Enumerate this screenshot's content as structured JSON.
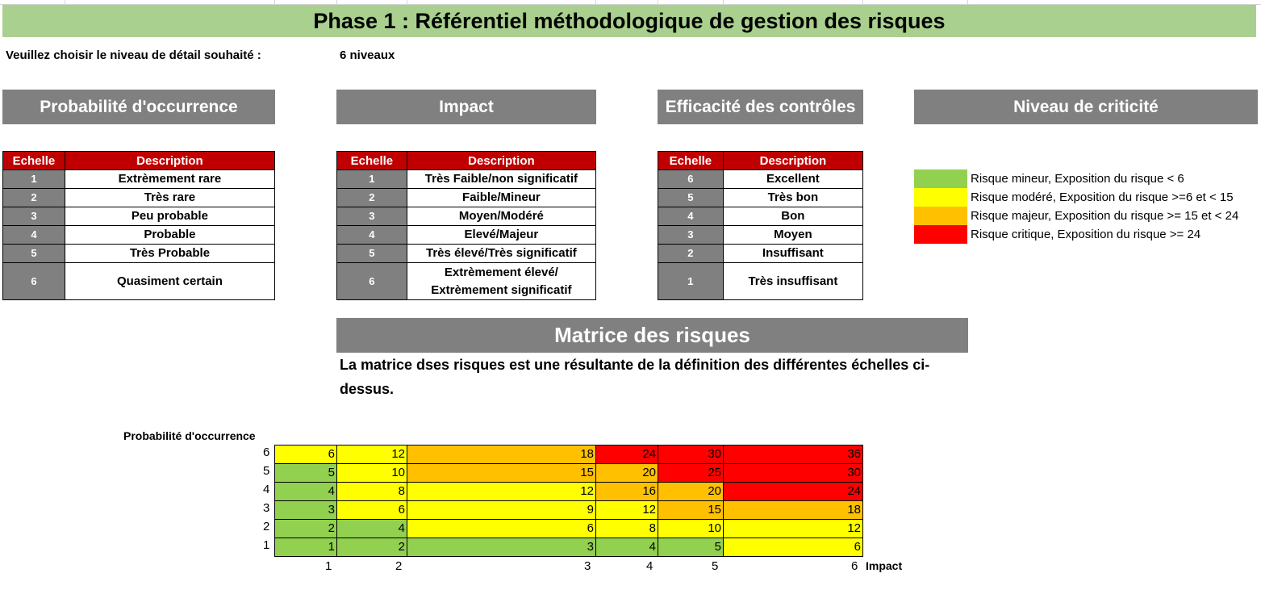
{
  "title": "Phase 1 : Référentiel méthodologique de gestion des risques",
  "prompt": {
    "label": "Veuillez choisir le niveau de détail souhaité :",
    "value": "6 niveaux"
  },
  "sections": {
    "probability": "Probabilité d'occurrence",
    "impact": "Impact",
    "controls": "Efficacité des contrôles",
    "criticity": "Niveau de criticité"
  },
  "table_headers": {
    "scale": "Echelle",
    "description": "Description"
  },
  "probability_rows": [
    {
      "scale": "1",
      "desc": "Extrèmement rare"
    },
    {
      "scale": "2",
      "desc": "Très rare"
    },
    {
      "scale": "3",
      "desc": "Peu probable"
    },
    {
      "scale": "4",
      "desc": "Probable"
    },
    {
      "scale": "5",
      "desc": "Très Probable"
    },
    {
      "scale": "6",
      "desc": "Quasiment certain"
    }
  ],
  "impact_rows": [
    {
      "scale": "1",
      "desc": "Très Faible/non significatif"
    },
    {
      "scale": "2",
      "desc": "Faible/Mineur"
    },
    {
      "scale": "3",
      "desc": "Moyen/Modéré"
    },
    {
      "scale": "4",
      "desc": "Elevé/Majeur"
    },
    {
      "scale": "5",
      "desc": "Très élevé/Très significatif"
    },
    {
      "scale": "6",
      "desc": "Extrèmement élevé/",
      "desc2": "Extrèmement significatif"
    }
  ],
  "control_rows": [
    {
      "scale": "6",
      "desc": "Excellent"
    },
    {
      "scale": "5",
      "desc": "Très bon"
    },
    {
      "scale": "4",
      "desc": "Bon"
    },
    {
      "scale": "3",
      "desc": "Moyen"
    },
    {
      "scale": "2",
      "desc": "Insuffisant"
    },
    {
      "scale": "1",
      "desc": "Très insuffisant"
    }
  ],
  "legend": [
    {
      "color": "#92d050",
      "label": "Risque mineur, Exposition du risque < 6"
    },
    {
      "color": "#ffff00",
      "label": "Risque modéré, Exposition du risque >=6 et < 15"
    },
    {
      "color": "#ffc000",
      "label": "Risque majeur, Exposition du risque >= 15 et < 24"
    },
    {
      "color": "#ff0000",
      "label": "Risque critique, Exposition du risque >= 24"
    }
  ],
  "matrix": {
    "title": "Matrice des risques",
    "description_line1": "La matrice dses risques est une résultante de la définition des différentes échelles ci-",
    "description_line2": "dessus.",
    "y_axis_label": "Probabilité d'occurrence",
    "x_axis_label": "Impact",
    "row_labels": [
      "6",
      "5",
      "4",
      "3",
      "2",
      "1"
    ],
    "col_labels": [
      "1",
      "2",
      "3",
      "4",
      "5",
      "6"
    ],
    "values": [
      [
        "6",
        "12",
        "18",
        "24",
        "30",
        "36"
      ],
      [
        "5",
        "10",
        "15",
        "20",
        "25",
        "30"
      ],
      [
        "4",
        "8",
        "12",
        "16",
        "20",
        "24"
      ],
      [
        "3",
        "6",
        "9",
        "12",
        "15",
        "18"
      ],
      [
        "2",
        "4",
        "6",
        "8",
        "10",
        "12"
      ],
      [
        "1",
        "2",
        "3",
        "4",
        "5",
        "6"
      ]
    ],
    "colors": [
      [
        "#ffff00",
        "#ffff00",
        "#ffc000",
        "#ff0000",
        "#ff0000",
        "#ff0000"
      ],
      [
        "#92d050",
        "#ffff00",
        "#ffc000",
        "#ffc000",
        "#ff0000",
        "#ff0000"
      ],
      [
        "#92d050",
        "#ffff00",
        "#ffff00",
        "#ffc000",
        "#ffc000",
        "#ff0000"
      ],
      [
        "#92d050",
        "#ffff00",
        "#ffff00",
        "#ffff00",
        "#ffc000",
        "#ffc000"
      ],
      [
        "#92d050",
        "#92d050",
        "#ffff00",
        "#ffff00",
        "#ffff00",
        "#ffff00"
      ],
      [
        "#92d050",
        "#92d050",
        "#92d050",
        "#92d050",
        "#92d050",
        "#ffff00"
      ]
    ]
  }
}
